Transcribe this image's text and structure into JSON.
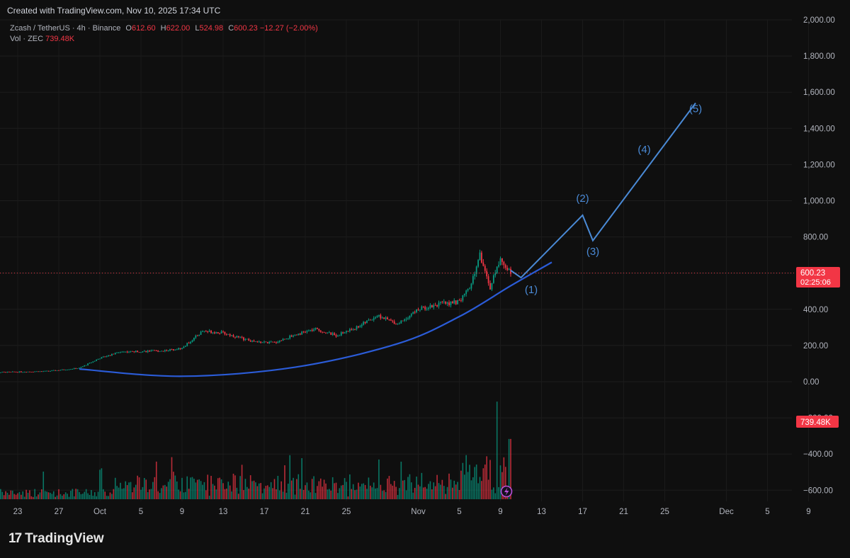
{
  "header": {
    "credit": "Created with TradingView.com, Nov 10, 2025 17:34 UTC"
  },
  "legend": {
    "symbol": "Zcash / TetherUS · 4h · Binance",
    "open_label": "O",
    "open": "612.60",
    "high_label": "H",
    "high": "622.00",
    "low_label": "L",
    "low": "524.98",
    "close_label": "C",
    "close": "600.23",
    "change": "−12.27 (−2.00%)",
    "vol_label": "Vol · ZEC",
    "vol_value": "739.48K"
  },
  "price_axis": {
    "ticks": [
      "2,000.00",
      "1,800.00",
      "1,600.00",
      "1,400.00",
      "1,200.00",
      "1,000.00",
      "800.00",
      "600.00",
      "400.00",
      "200.00",
      "0.00",
      "−200.00",
      "−400.00",
      "−600.00"
    ],
    "ylim": [
      -600,
      2000
    ]
  },
  "price_badge": {
    "price": "600.23",
    "countdown": "02:25:06",
    "color": "#f23645"
  },
  "volume_badge": {
    "value": "739.48K",
    "color": "#f23645"
  },
  "colors": {
    "up": "#089981",
    "down": "#f23645",
    "annotation": "#4a8ad6",
    "curve": "#2b5cd8"
  },
  "chart_data": {
    "type": "candlestick",
    "x_ticks": [
      "23",
      "27",
      "Oct",
      "5",
      "9",
      "13",
      "17",
      "21",
      "25",
      "Nov",
      "5",
      "9",
      "13",
      "17",
      "21",
      "25",
      "Dec",
      "5",
      "9"
    ],
    "ohlc_anchors": [
      {
        "date": "Sep 20",
        "price": 50
      },
      {
        "date": "Sep 26",
        "price": 58
      },
      {
        "date": "Sep 29",
        "price": 75
      },
      {
        "date": "Oct 1",
        "price": 130
      },
      {
        "date": "Oct 3",
        "price": 165
      },
      {
        "date": "Oct 7",
        "price": 170
      },
      {
        "date": "Oct 9",
        "price": 185
      },
      {
        "date": "Oct 11",
        "price": 280
      },
      {
        "date": "Oct 13",
        "price": 270
      },
      {
        "date": "Oct 16",
        "price": 220
      },
      {
        "date": "Oct 18",
        "price": 215
      },
      {
        "date": "Oct 20",
        "price": 260
      },
      {
        "date": "Oct 22",
        "price": 290
      },
      {
        "date": "Oct 24",
        "price": 255
      },
      {
        "date": "Oct 26",
        "price": 300
      },
      {
        "date": "Oct 28",
        "price": 365
      },
      {
        "date": "Oct 30",
        "price": 320
      },
      {
        "date": "Nov 1",
        "price": 400
      },
      {
        "date": "Nov 3",
        "price": 430
      },
      {
        "date": "Nov 5",
        "price": 440
      },
      {
        "date": "Nov 6",
        "price": 520
      },
      {
        "date": "Nov 7",
        "price": 700
      },
      {
        "date": "Nov 8",
        "price": 520
      },
      {
        "date": "Nov 9",
        "price": 680
      },
      {
        "date": "Nov 10",
        "price": 600
      }
    ],
    "volume_ylim": [
      0,
      740
    ],
    "forecast_curve": [
      {
        "date": "Sep 29",
        "price": 70
      },
      {
        "date": "Oct 9",
        "price": 30
      },
      {
        "date": "Oct 20",
        "price": 80
      },
      {
        "date": "Oct 30",
        "price": 210
      },
      {
        "date": "Nov 5",
        "price": 360
      },
      {
        "date": "Nov 10",
        "price": 530
      },
      {
        "date": "Nov 14",
        "price": 660
      }
    ],
    "wave_path": [
      {
        "date": "Nov 10",
        "price": 615
      },
      {
        "date": "Nov 11",
        "price": 575
      },
      {
        "date": "Nov 17",
        "price": 920
      },
      {
        "date": "Nov 18",
        "price": 780
      },
      {
        "date": "Nov 28",
        "price": 1540
      }
    ],
    "wave_labels": [
      {
        "text": "(1)",
        "date": "Nov 12",
        "price": 490
      },
      {
        "text": "(2)",
        "date": "Nov 17",
        "price": 995
      },
      {
        "text": "(3)",
        "date": "Nov 18",
        "price": 700
      },
      {
        "text": "(4)",
        "date": "Nov 23",
        "price": 1265
      },
      {
        "text": "(5)",
        "date": "Nov 28",
        "price": 1490
      }
    ]
  }
}
